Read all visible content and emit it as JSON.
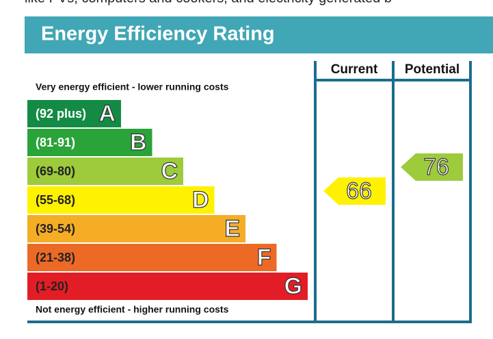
{
  "chart_data": {
    "type": "energy-rating",
    "header_text": "like PVs, computers and cookers, and electricity generated b",
    "title": "Energy Efficiency Rating",
    "top_label": "Very energy efficient - lower running costs",
    "bottom_label": "Not energy efficient - higher running costs",
    "bands": [
      {
        "range": "(92 plus)",
        "letter": "A",
        "color": "#138b45"
      },
      {
        "range": "(81-91)",
        "letter": "B",
        "color": "#2aa339"
      },
      {
        "range": "(69-80)",
        "letter": "C",
        "color": "#9dcb3c"
      },
      {
        "range": "(55-68)",
        "letter": "D",
        "color": "#fff200"
      },
      {
        "range": "(39-54)",
        "letter": "E",
        "color": "#f5ad25"
      },
      {
        "range": "(21-38)",
        "letter": "F",
        "color": "#ec6a26"
      },
      {
        "range": "(1-20)",
        "letter": "G",
        "color": "#e31d26"
      }
    ],
    "ratings": [
      {
        "name": "Current",
        "value": 66,
        "color": "#fff200"
      },
      {
        "name": "Potential",
        "value": 76,
        "color": "#9dcb3c"
      }
    ]
  }
}
